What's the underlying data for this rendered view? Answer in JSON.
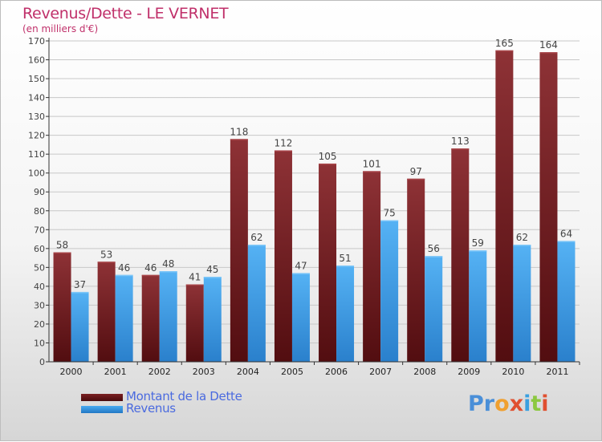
{
  "header": {
    "title": "Revenus/Dette - LE VERNET",
    "subtitle": "(en milliers d'€)"
  },
  "logo": {
    "text": "Proxiti",
    "letter_colors": [
      "#4a8fd8",
      "#4a8fd8",
      "#f0a030",
      "#e05030",
      "#3aa0e0",
      "#8cc840",
      "#e05030"
    ]
  },
  "colors": {
    "series1": "#7a1f22",
    "series1_dark": "#4a0a0c",
    "series2": "#4aaaf0",
    "series2_dark": "#2277c4",
    "grid": "#c8c8c8",
    "axis": "#333333",
    "label": "#444444"
  },
  "chart_data": {
    "type": "bar",
    "categories": [
      "2000",
      "2001",
      "2002",
      "2003",
      "2004",
      "2005",
      "2006",
      "2007",
      "2008",
      "2009",
      "2010",
      "2011"
    ],
    "series": [
      {
        "name": "Montant de la Dette",
        "values": [
          58,
          53,
          46,
          41,
          118,
          112,
          105,
          101,
          97,
          113,
          165,
          164
        ]
      },
      {
        "name": "Revenus",
        "values": [
          37,
          46,
          48,
          45,
          62,
          47,
          51,
          75,
          56,
          59,
          62,
          64
        ]
      }
    ],
    "ylim": [
      0,
      170
    ],
    "ytick_step": 10,
    "grid": true,
    "legend_position": "bottom-left",
    "data_labels": true
  }
}
